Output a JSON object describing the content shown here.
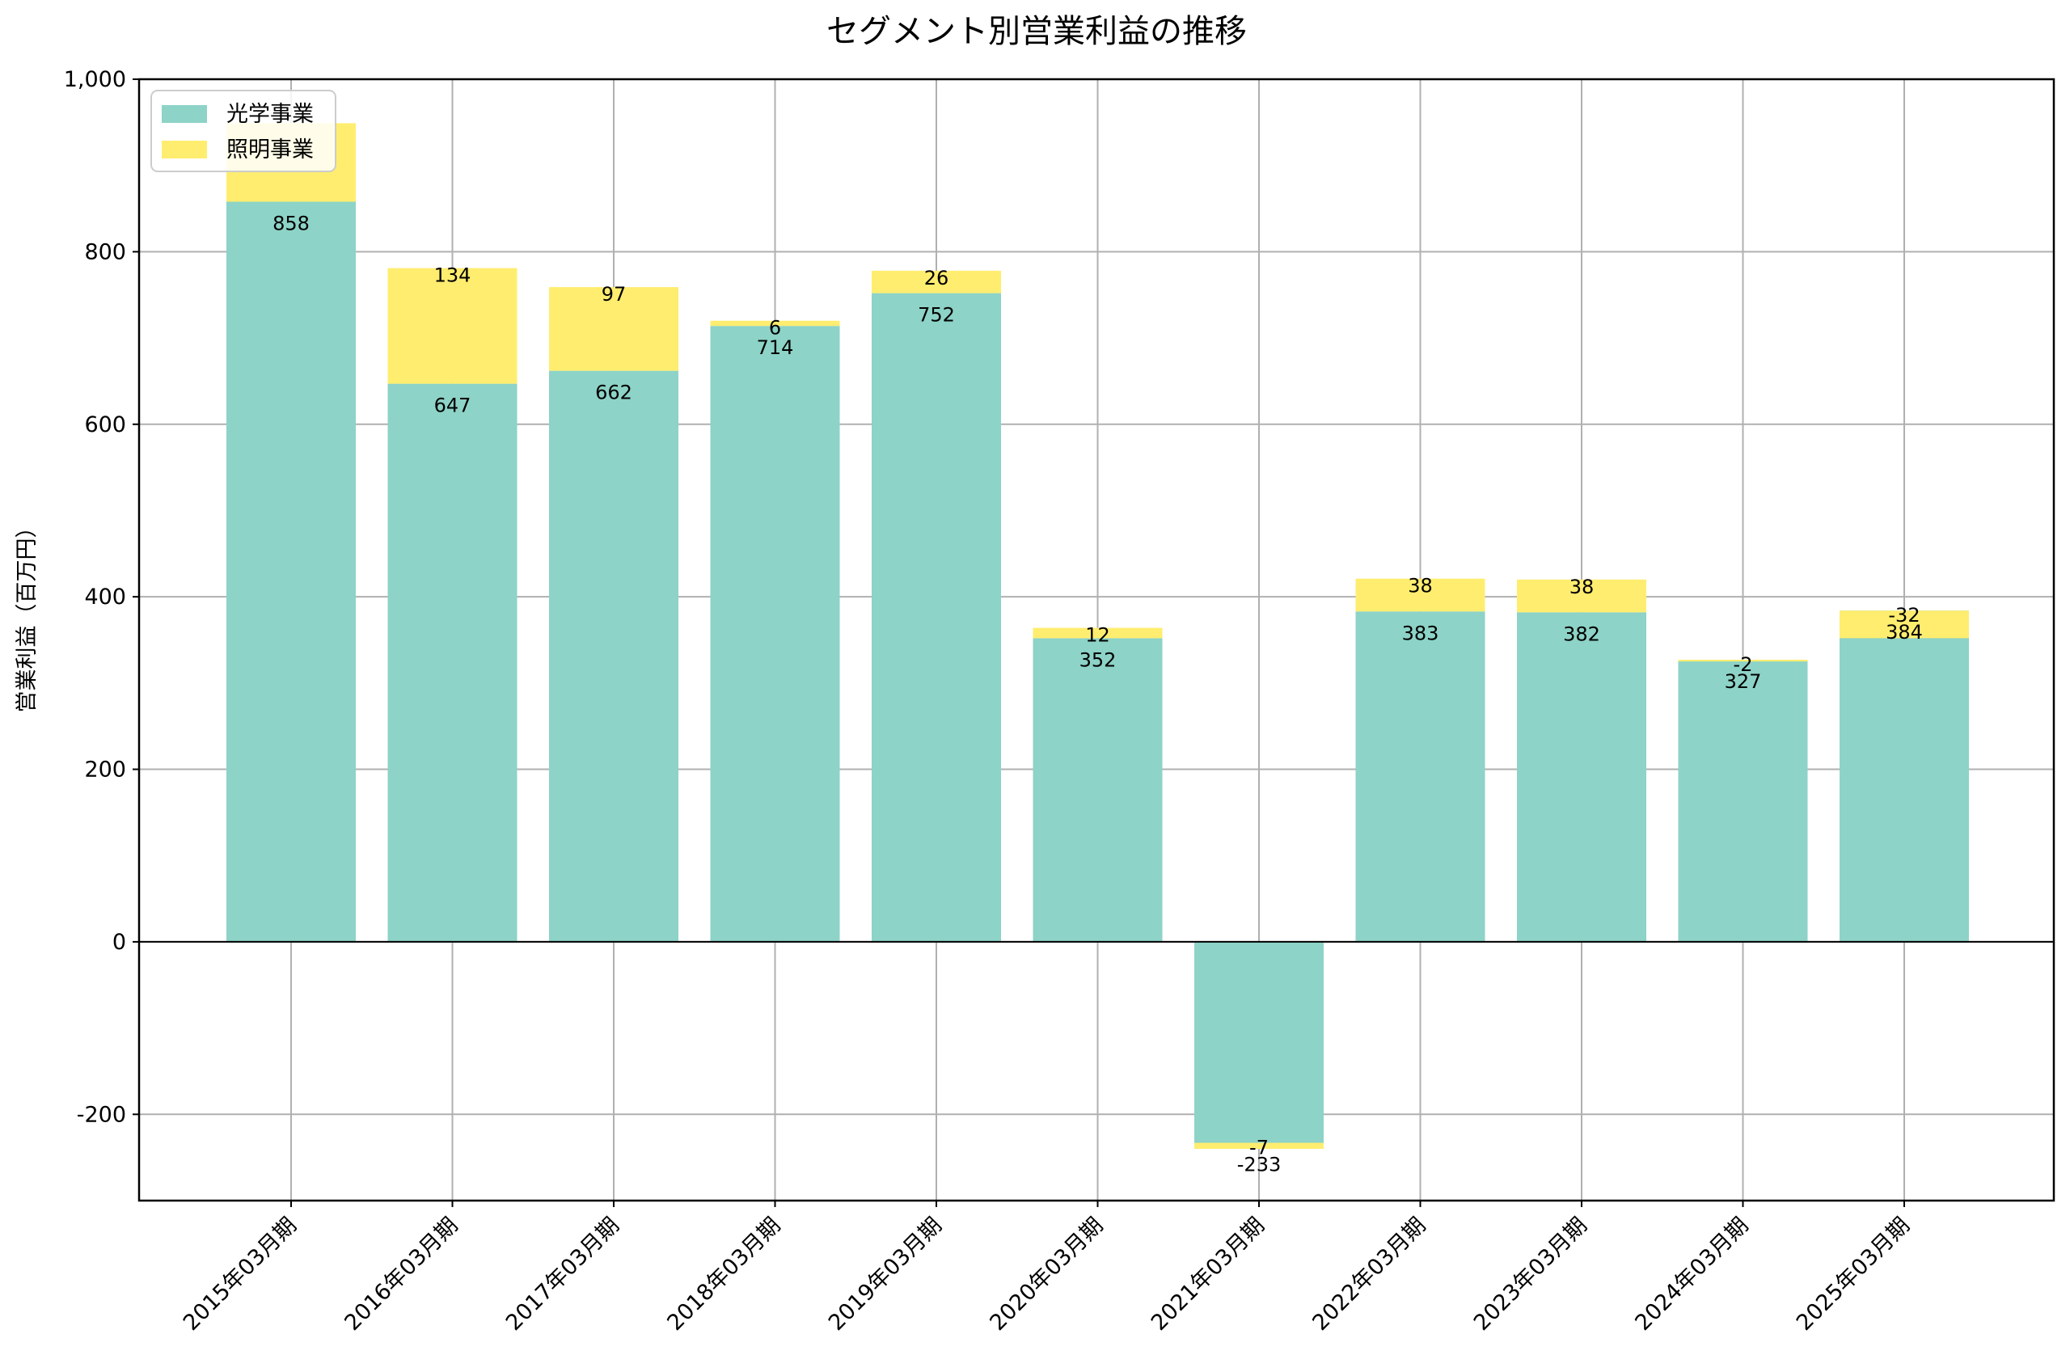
{
  "chart_data": {
    "type": "bar",
    "stacked": true,
    "title": "セグメント別営業利益の推移",
    "xlabel": "",
    "ylabel": "営業利益（百万円）",
    "ylim": [
      -300,
      1000
    ],
    "yticks": [
      -200,
      0,
      200,
      400,
      600,
      800,
      1000
    ],
    "ytick_labels": [
      "-200",
      "0",
      "200",
      "400",
      "600",
      "800",
      "1,000"
    ],
    "grid": true,
    "legend_position": "top-left",
    "categories": [
      "2015年03月期",
      "2016年03月期",
      "2017年03月期",
      "2018年03月期",
      "2019年03月期",
      "2020年03月期",
      "2021年03月期",
      "2022年03月期",
      "2023年03月期",
      "2024年03月期",
      "2025年03月期"
    ],
    "series": [
      {
        "name": "光学事業",
        "color": "#8dd3c7",
        "values": [
          858,
          647,
          662,
          714,
          752,
          352,
          -233,
          383,
          382,
          327,
          384
        ],
        "labels": [
          "858",
          "647",
          "662",
          "714",
          "752",
          "352",
          "-233",
          "383",
          "382",
          "327",
          "384"
        ]
      },
      {
        "name": "照明事業",
        "color": "#ffed6f",
        "values": [
          91,
          134,
          97,
          6,
          26,
          12,
          -7,
          38,
          38,
          -2,
          -32
        ],
        "labels": [
          "",
          "134",
          "97",
          "6",
          "26",
          "12",
          "-7",
          "38",
          "38",
          "-2",
          "-32"
        ]
      }
    ]
  }
}
